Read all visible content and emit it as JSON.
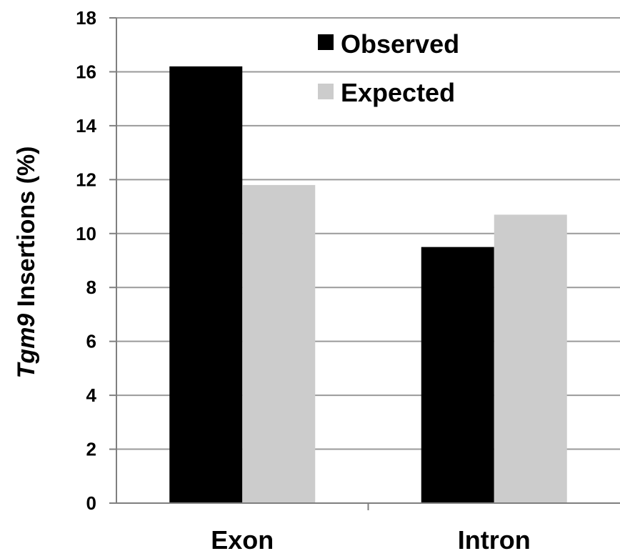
{
  "chart_data": {
    "type": "bar",
    "categories": [
      "Exon",
      "Intron"
    ],
    "series": [
      {
        "name": "Observed",
        "values": [
          16.2,
          9.5
        ],
        "color": "#000000"
      },
      {
        "name": "Expected",
        "values": [
          11.8,
          10.7
        ],
        "color": "#cccccc"
      }
    ],
    "ylabel_italic": "Tgm9",
    "ylabel_rest": " Insertions (%)",
    "ylim": [
      0,
      18
    ],
    "yticks": [
      "0",
      "2",
      "4",
      "6",
      "8",
      "10",
      "12",
      "14",
      "16",
      "18"
    ],
    "grid": true,
    "legend_position": "top-right",
    "gridline_color": "#9a9a9a",
    "axis_color": "#7f7f7f"
  }
}
